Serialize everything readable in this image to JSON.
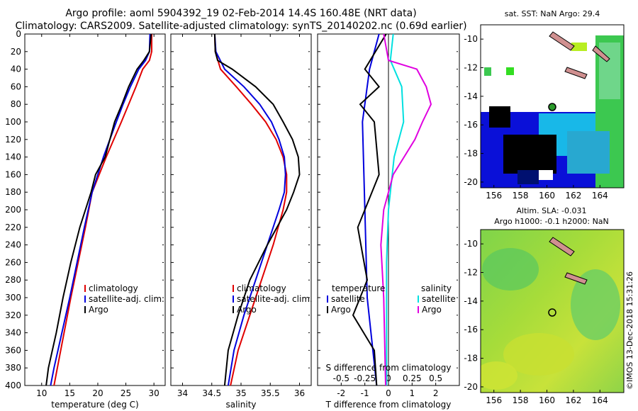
{
  "header": {
    "title_line1": "Argo profile: aoml 5904392_19 02-Feb-2014 14.4S 160.48E (NRT data)",
    "title_line2": "Climatology: CARS2009. Satellite-adjusted climatology: synTS_20140202.nc (0.69d earlier)"
  },
  "colors": {
    "climatology": "#e00000",
    "satellite": "#0000dd",
    "argo": "#000000",
    "sal_satellite": "#00e0e0",
    "sal_argo": "#e000e0"
  },
  "chart_data": [
    {
      "type": "line",
      "panel": "temperature",
      "xlabel": "temperature (deg C)",
      "ylabel": "",
      "xlim": [
        7,
        32
      ],
      "ylim": [
        400,
        0
      ],
      "xticks": [
        10,
        15,
        20,
        25,
        30
      ],
      "yticks": [
        0,
        20,
        40,
        60,
        80,
        100,
        120,
        140,
        160,
        180,
        200,
        220,
        240,
        260,
        280,
        300,
        320,
        340,
        360,
        380,
        400
      ],
      "legend": [
        "climatology",
        "satellite-adj. clim.",
        "Argo"
      ],
      "series": [
        {
          "name": "climatology",
          "depth": [
            0,
            20,
            30,
            40,
            60,
            80,
            100,
            140,
            180,
            220,
            260,
            300,
            340,
            380,
            400
          ],
          "values": [
            29.6,
            29.6,
            29.2,
            28.0,
            26.8,
            25.5,
            24.2,
            21.5,
            19.0,
            17.8,
            16.5,
            15.2,
            14.0,
            12.8,
            12.2
          ]
        },
        {
          "name": "satellite-adj. clim.",
          "depth": [
            0,
            20,
            30,
            40,
            60,
            80,
            100,
            140,
            180,
            220,
            260,
            300,
            340,
            380,
            400
          ],
          "values": [
            29.3,
            29.2,
            28.5,
            27.3,
            25.8,
            24.5,
            23.3,
            21.0,
            19.0,
            17.6,
            16.3,
            15.0,
            13.6,
            12.2,
            11.6
          ]
        },
        {
          "name": "Argo",
          "depth": [
            0,
            20,
            30,
            40,
            60,
            80,
            100,
            140,
            160,
            180,
            220,
            260,
            300,
            340,
            380,
            400
          ],
          "values": [
            29.5,
            29.2,
            28.2,
            27.0,
            25.5,
            24.3,
            23.0,
            21.3,
            19.6,
            18.8,
            16.8,
            15.2,
            13.8,
            12.6,
            11.2,
            10.8
          ]
        }
      ]
    },
    {
      "type": "line",
      "panel": "salinity",
      "xlabel": "salinity",
      "ylabel": "",
      "xlim": [
        33.8,
        36.2
      ],
      "ylim": [
        400,
        0
      ],
      "xticks": [
        34,
        34.5,
        35,
        35.5,
        36
      ],
      "legend": [
        "climatology",
        "satellite-adj. clim.",
        "Argo"
      ],
      "series": [
        {
          "name": "climatology",
          "depth": [
            0,
            20,
            40,
            60,
            80,
            100,
            120,
            140,
            160,
            180,
            200,
            240,
            280,
            320,
            360,
            400
          ],
          "values": [
            34.55,
            34.56,
            34.65,
            34.92,
            35.18,
            35.42,
            35.6,
            35.72,
            35.78,
            35.78,
            35.72,
            35.55,
            35.35,
            35.15,
            34.95,
            34.82
          ]
        },
        {
          "name": "satellite-adj. clim.",
          "depth": [
            0,
            20,
            40,
            60,
            80,
            100,
            120,
            140,
            160,
            180,
            200,
            240,
            280,
            320,
            360,
            400
          ],
          "values": [
            34.55,
            34.57,
            34.72,
            35.05,
            35.32,
            35.52,
            35.65,
            35.74,
            35.76,
            35.74,
            35.65,
            35.45,
            35.25,
            35.05,
            34.88,
            34.78
          ]
        },
        {
          "name": "Argo",
          "depth": [
            0,
            20,
            30,
            40,
            60,
            80,
            100,
            120,
            140,
            160,
            180,
            200,
            240,
            280,
            320,
            360,
            400
          ],
          "values": [
            34.55,
            34.56,
            34.6,
            34.85,
            35.25,
            35.55,
            35.72,
            35.88,
            35.98,
            36.0,
            35.9,
            35.78,
            35.45,
            35.15,
            34.95,
            34.78,
            34.72
          ]
        }
      ]
    },
    {
      "type": "line",
      "panel": "difference",
      "xlabel": "T difference from climatology",
      "x2label": "S difference from climatology",
      "xlim": [
        -3,
        3
      ],
      "x2lim": [
        -0.75,
        0.75
      ],
      "ylim": [
        400,
        0
      ],
      "xticks": [
        -2,
        -1,
        0,
        1,
        2
      ],
      "x2ticks": [
        -0.5,
        -0.25,
        0,
        0.25,
        0.5
      ],
      "legend_titles": [
        "temperature",
        "salinity"
      ],
      "legend": [
        "satellite",
        "Argo",
        "satellite",
        "Argo"
      ],
      "series": [
        {
          "name": "temperature satellite",
          "depth": [
            0,
            40,
            100,
            200,
            300,
            400
          ],
          "values": [
            -0.4,
            -0.8,
            -1.1,
            -1.0,
            -0.9,
            -0.5
          ]
        },
        {
          "name": "temperature Argo",
          "depth": [
            0,
            40,
            60,
            80,
            100,
            160,
            220,
            280,
            320,
            360,
            400
          ],
          "values": [
            -0.1,
            -1.0,
            -0.4,
            -1.2,
            -0.6,
            -0.4,
            -1.3,
            -0.9,
            -1.5,
            -0.6,
            -0.5
          ]
        },
        {
          "name": "salinity satellite",
          "depth": [
            0,
            30,
            60,
            100,
            140,
            200,
            260,
            330,
            400
          ],
          "values": [
            0.05,
            0.02,
            0.14,
            0.16,
            0.06,
            0.0,
            -0.02,
            -0.02,
            -0.02
          ]
        },
        {
          "name": "salinity Argo",
          "depth": [
            0,
            30,
            40,
            60,
            80,
            100,
            120,
            160,
            200,
            240,
            300,
            400
          ],
          "values": [
            -0.05,
            0.0,
            0.3,
            0.4,
            0.45,
            0.36,
            0.28,
            0.05,
            -0.05,
            -0.08,
            -0.05,
            -0.03
          ]
        }
      ]
    },
    {
      "type": "heatmap",
      "panel": "sst_map",
      "title": "sat. SST: NaN Argo: 29.4",
      "xticks": [
        156,
        158,
        160,
        162,
        164
      ],
      "yticks": [
        -10,
        -12,
        -14,
        -16,
        -18,
        -20
      ],
      "marker": {
        "lon": 160.48,
        "lat": -14.4
      }
    },
    {
      "type": "heatmap",
      "panel": "sla_map",
      "title": "Altim. SLA: -0.031",
      "subtitle": "Argo h1000: -0.1 h2000: NaN",
      "xticks": [
        156,
        158,
        160,
        162,
        164
      ],
      "yticks": [
        -10,
        -12,
        -14,
        -16,
        -18,
        -20
      ],
      "marker": {
        "lon": 160.48,
        "lat": -14.4
      }
    }
  ],
  "side_label": "©IMOS 13-Dec-2018 15:31:26"
}
